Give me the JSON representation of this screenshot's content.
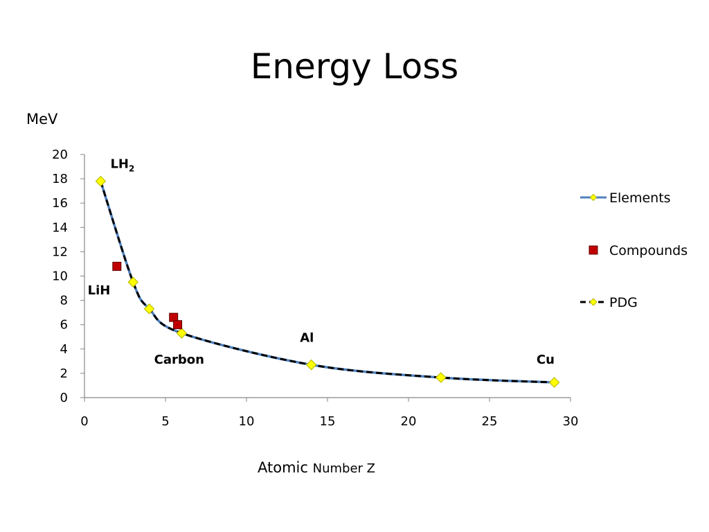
{
  "title": "Energy Loss",
  "colors": {
    "elements_line": "#4f81bd",
    "pdg_line": "#000000",
    "marker_fill": "#ffff00",
    "marker_stroke": "#b8b800",
    "compound_fill": "#c00000",
    "compound_stroke": "#600000"
  },
  "chart_data": {
    "type": "scatter",
    "title": "Energy Loss",
    "xlabel": "Atomic Number Z",
    "xlabel_parts": [
      "Atomic",
      "Number Z"
    ],
    "ylabel": "MeV",
    "xlim": [
      0,
      30
    ],
    "ylim": [
      0,
      20
    ],
    "x_ticks": [
      0,
      5,
      10,
      15,
      20,
      25,
      30
    ],
    "y_ticks": [
      0,
      2,
      4,
      6,
      8,
      10,
      12,
      14,
      16,
      18,
      20
    ],
    "grid": false,
    "legend_position": "right",
    "series": [
      {
        "name": "Elements",
        "style": "line-with-diamond-markers",
        "x": [
          1,
          3,
          4,
          6,
          14,
          22,
          29
        ],
        "y": [
          17.8,
          9.5,
          7.3,
          5.3,
          2.7,
          1.65,
          1.25
        ]
      },
      {
        "name": "Compounds",
        "style": "square-markers",
        "x": [
          2,
          5.5,
          5.75
        ],
        "y": [
          10.8,
          6.6,
          6.0
        ]
      },
      {
        "name": "PDG",
        "style": "dashed-line-with-diamond-markers",
        "x": [
          1,
          3,
          4,
          6,
          14,
          22,
          29
        ],
        "y": [
          17.8,
          9.5,
          7.3,
          5.3,
          2.7,
          1.65,
          1.25
        ]
      }
    ],
    "annotations": [
      {
        "text": "LH",
        "sub": "2",
        "x": 1.6,
        "y": 18.9
      },
      {
        "text": "LiH",
        "x": 0.2,
        "y": 8.5
      },
      {
        "text": "Carbon",
        "x": 4.3,
        "y": 2.8
      },
      {
        "text": "Al",
        "x": 13.3,
        "y": 4.6
      },
      {
        "text": "Cu",
        "x": 27.9,
        "y": 2.8
      }
    ]
  }
}
